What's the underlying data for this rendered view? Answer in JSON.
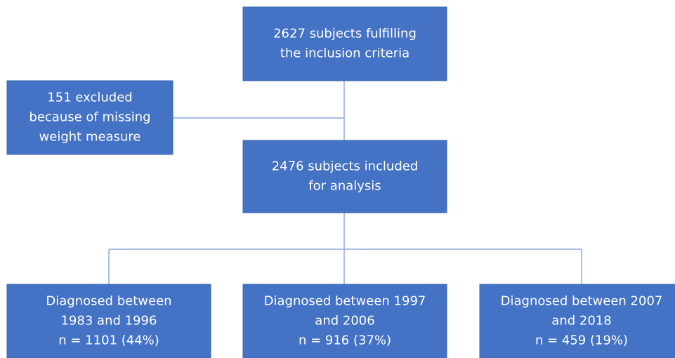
{
  "nodes": [
    {
      "lines": [
        "2627 subjects fulfilling",
        "the inclusion criteria"
      ]
    },
    {
      "lines": [
        "151 excluded",
        "because of missing",
        "weight measure"
      ]
    },
    {
      "lines": [
        "2476 subjects included",
        "for analysis"
      ]
    },
    {
      "lines": [
        "Diagnosed between",
        "1983 and 1996",
        "n = 1101 (44%)"
      ]
    },
    {
      "lines": [
        "Diagnosed between 1997",
        "and 2006",
        "n = 916 (37%)"
      ]
    },
    {
      "lines": [
        "Diagnosed between 2007",
        "and 2018",
        "n = 459 (19%)"
      ]
    }
  ]
}
